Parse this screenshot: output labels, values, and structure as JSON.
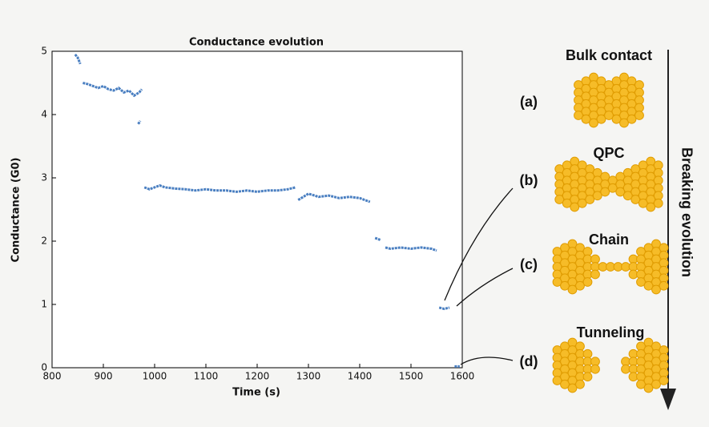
{
  "chart_data": {
    "type": "line",
    "title": "Conductance evolution",
    "x_label": "Time (s)",
    "y_label": "Conductance (G0)",
    "xlim": [
      800,
      1600
    ],
    "xticks": [
      800,
      900,
      1000,
      1100,
      1200,
      1300,
      1400,
      1500,
      1600
    ],
    "ylim": [
      0,
      5
    ],
    "yticks": [
      0,
      1,
      2,
      3,
      4,
      5
    ],
    "grid": false,
    "series": [
      {
        "color": "#4a7fc1",
        "x": [
          845,
          850,
          855,
          null,
          860,
          870,
          880,
          890,
          900,
          910,
          920,
          930,
          940,
          950,
          960,
          970,
          975,
          null,
          968,
          972,
          null,
          980,
          990,
          1000,
          1010,
          1020,
          1040,
          1060,
          1080,
          1100,
          1120,
          1140,
          1160,
          1180,
          1200,
          1220,
          1240,
          1260,
          1275,
          null,
          1280,
          1290,
          1300,
          1320,
          1340,
          1360,
          1380,
          1400,
          1420,
          null,
          1430,
          1440,
          null,
          1450,
          1460,
          1480,
          1500,
          1520,
          1540,
          1550,
          null,
          1555,
          1565,
          1575,
          null,
          1585,
          1595
        ],
        "values": [
          4.95,
          4.9,
          4.8,
          null,
          4.5,
          4.48,
          4.45,
          4.42,
          4.45,
          4.4,
          4.38,
          4.42,
          4.35,
          4.38,
          4.3,
          4.35,
          4.4,
          null,
          3.85,
          3.9,
          null,
          2.85,
          2.82,
          2.85,
          2.88,
          2.85,
          2.83,
          2.82,
          2.8,
          2.82,
          2.8,
          2.8,
          2.78,
          2.8,
          2.78,
          2.8,
          2.8,
          2.82,
          2.85,
          null,
          2.65,
          2.7,
          2.75,
          2.7,
          2.72,
          2.68,
          2.7,
          2.68,
          2.62,
          null,
          2.05,
          2.02,
          null,
          1.9,
          1.88,
          1.9,
          1.88,
          1.9,
          1.88,
          1.85,
          null,
          0.95,
          0.93,
          0.95,
          null,
          0.02,
          0.02
        ]
      }
    ]
  },
  "diagram": {
    "axis_label": "Breaking evolution",
    "stages": [
      {
        "label": "(a)",
        "name": "Bulk contact"
      },
      {
        "label": "(b)",
        "name": "QPC"
      },
      {
        "label": "(c)",
        "name": "Chain"
      },
      {
        "label": "(d)",
        "name": "Tunneling"
      }
    ]
  }
}
